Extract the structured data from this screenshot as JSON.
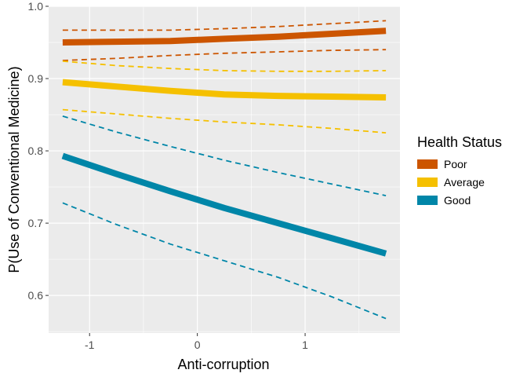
{
  "chart_data": {
    "type": "line",
    "title": "",
    "xlabel": "Anti-corruption",
    "ylabel": "P(Use of Conventional Medicine)",
    "xlim": [
      -1.38,
      1.88
    ],
    "ylim": [
      0.548,
      1.0
    ],
    "x_ticks": [
      -1,
      0,
      1
    ],
    "x_tick_labels": [
      "-1",
      "0",
      "1"
    ],
    "y_ticks": [
      0.6,
      0.7,
      0.8,
      0.9,
      1.0
    ],
    "y_tick_labels": [
      "0.6",
      "0.7",
      "0.8",
      "0.9",
      "1.0"
    ],
    "grid": true,
    "legend": {
      "title": "Health Status",
      "position": "right"
    },
    "x": [
      -1.25,
      -0.75,
      -0.25,
      0.25,
      0.75,
      1.25,
      1.75
    ],
    "series": [
      {
        "name": "Poor",
        "color": "#CC5500",
        "values": [
          0.95,
          0.951,
          0.952,
          0.955,
          0.958,
          0.962,
          0.966
        ],
        "lower": [
          0.925,
          0.928,
          0.932,
          0.935,
          0.937,
          0.939,
          0.94
        ],
        "upper": [
          0.967,
          0.967,
          0.967,
          0.969,
          0.972,
          0.976,
          0.98
        ]
      },
      {
        "name": "Average",
        "color": "#F5C000",
        "values": [
          0.895,
          0.889,
          0.883,
          0.878,
          0.876,
          0.875,
          0.874
        ],
        "lower": [
          0.857,
          0.851,
          0.845,
          0.84,
          0.836,
          0.831,
          0.825
        ],
        "upper": [
          0.924,
          0.918,
          0.914,
          0.911,
          0.91,
          0.91,
          0.911
        ]
      },
      {
        "name": "Good",
        "color": "#0086A8",
        "values": [
          0.793,
          0.768,
          0.744,
          0.721,
          0.7,
          0.679,
          0.658
        ],
        "lower": [
          0.728,
          0.698,
          0.671,
          0.648,
          0.625,
          0.598,
          0.568
        ],
        "upper": [
          0.848,
          0.826,
          0.806,
          0.787,
          0.77,
          0.754,
          0.738
        ]
      }
    ]
  }
}
